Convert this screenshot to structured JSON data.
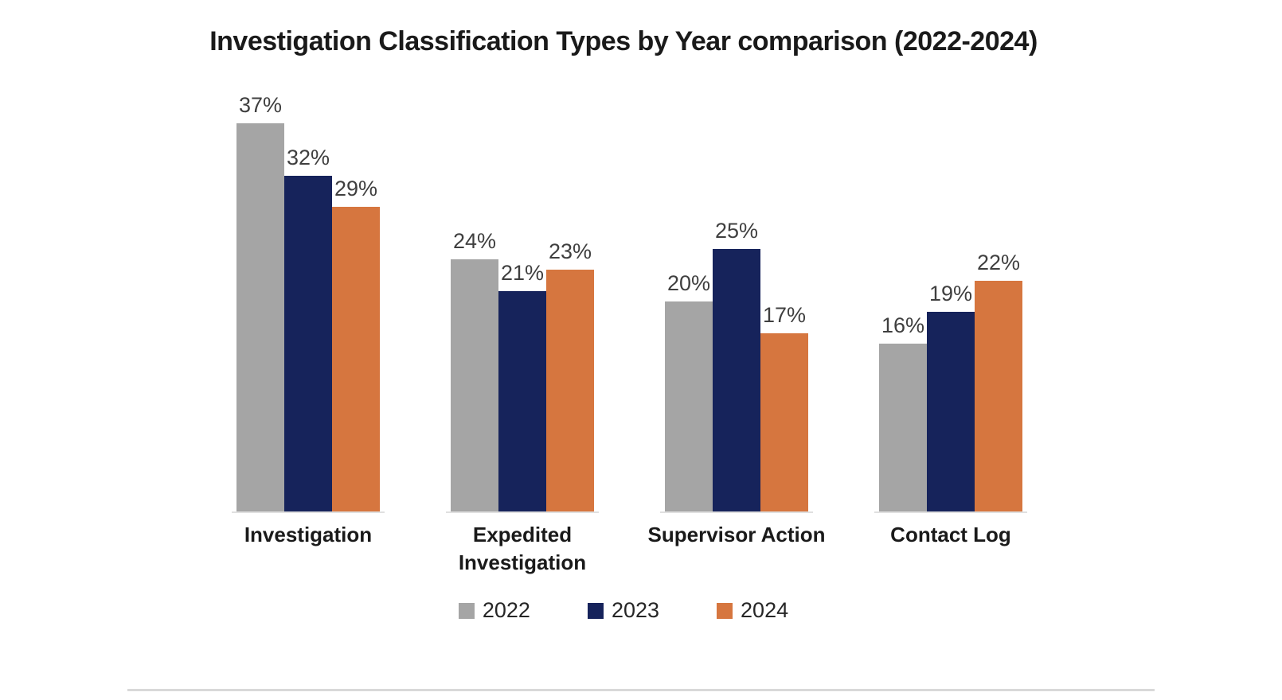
{
  "title": "Investigation Classification Types by Year comparison (2022-2024)",
  "chart_data": {
    "type": "bar",
    "title": "Investigation Classification Types by Year comparison (2022-2024)",
    "categories": [
      "Investigation",
      "Expedited Investigation",
      "Supervisor Action",
      "Contact Log"
    ],
    "series": [
      {
        "name": "2022",
        "color": "#a5a5a5",
        "values": [
          37,
          24,
          20,
          16
        ]
      },
      {
        "name": "2023",
        "color": "#16235b",
        "values": [
          32,
          21,
          25,
          19
        ]
      },
      {
        "name": "2024",
        "color": "#d6763f",
        "values": [
          29,
          23,
          17,
          22
        ]
      }
    ],
    "data_labels": [
      "37%",
      "32%",
      "29%",
      "24%",
      "21%",
      "23%",
      "20%",
      "25%",
      "17%",
      "16%",
      "19%",
      "22%"
    ],
    "value_suffix": "%",
    "xlabel": "",
    "ylabel": "",
    "ylim": [
      0,
      40
    ],
    "grid": false,
    "axis_visible": false,
    "legend_position": "bottom",
    "legend_labels": [
      "2022",
      "2023",
      "2024"
    ]
  },
  "colors": {
    "series_2022": "#a5a5a5",
    "series_2023": "#16235b",
    "series_2024": "#d6763f",
    "value_label": "#3f3f3f",
    "category_label": "#1a1a1a",
    "divider": "#d9d9d9",
    "background": "#ffffff"
  }
}
